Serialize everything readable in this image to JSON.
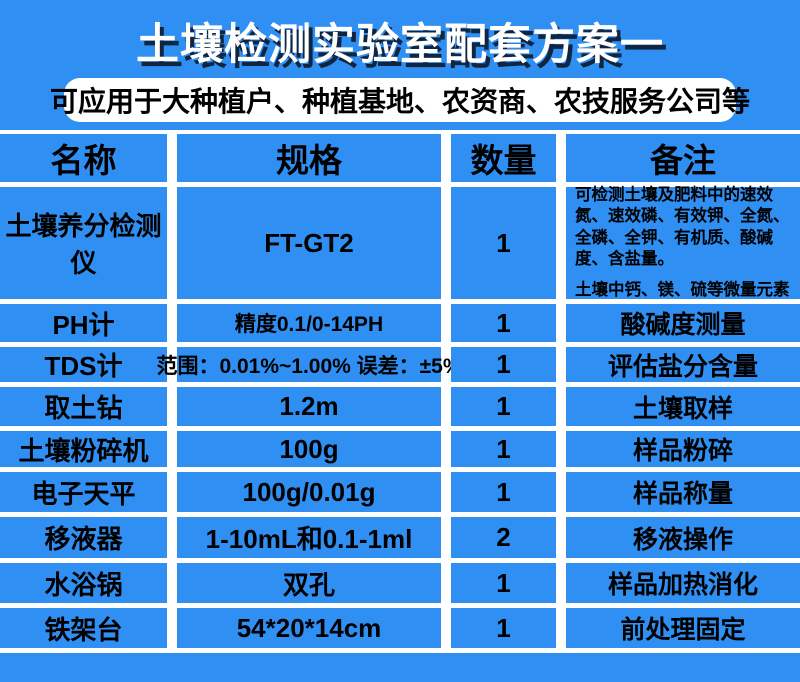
{
  "colors": {
    "background": "#2F8FF3",
    "grid_line": "#FFFFFF",
    "title_text": "#FFFFFF",
    "title_shadow": "#102640",
    "body_text": "#000000"
  },
  "header": {
    "title": "土壤检测实验室配套方案一",
    "subtitle": "可应用于大种植户、种植基地、农资商、农技服务公司等"
  },
  "table": {
    "headers": [
      "名称",
      "规格",
      "数量",
      "备注"
    ],
    "rows": [
      {
        "name": "土壤养分检测仪",
        "spec": "FT-GT2",
        "qty": "1",
        "note": "可检测土壤及肥料中的速效氮、速效磷、有效钾、全氮、全磷、全钾、有机质、酸碱度、含盐量。",
        "note2": "土壤中钙、镁、硫等微量元素"
      },
      {
        "name": "PH计",
        "spec": "精度0.1/0-14PH",
        "qty": "1",
        "note": "酸碱度测量"
      },
      {
        "name": "TDS计",
        "spec": "范围：0.01%~1.00%  误差：±5%",
        "qty": "1",
        "note": "评估盐分含量"
      },
      {
        "name": "取土钻",
        "spec": "1.2m",
        "qty": "1",
        "note": "土壤取样"
      },
      {
        "name": "土壤粉碎机",
        "spec": "100g",
        "qty": "1",
        "note": "样品粉碎"
      },
      {
        "name": "电子天平",
        "spec": "100g/0.01g",
        "qty": "1",
        "note": "样品称量"
      },
      {
        "name": "移液器",
        "spec": "1-10mL和0.1-1ml",
        "qty": "2",
        "note": "移液操作"
      },
      {
        "name": "水浴锅",
        "spec": "双孔",
        "qty": "1",
        "note": "样品加热消化"
      },
      {
        "name": "铁架台",
        "spec": "54*20*14cm",
        "qty": "1",
        "note": "前处理固定"
      }
    ]
  }
}
